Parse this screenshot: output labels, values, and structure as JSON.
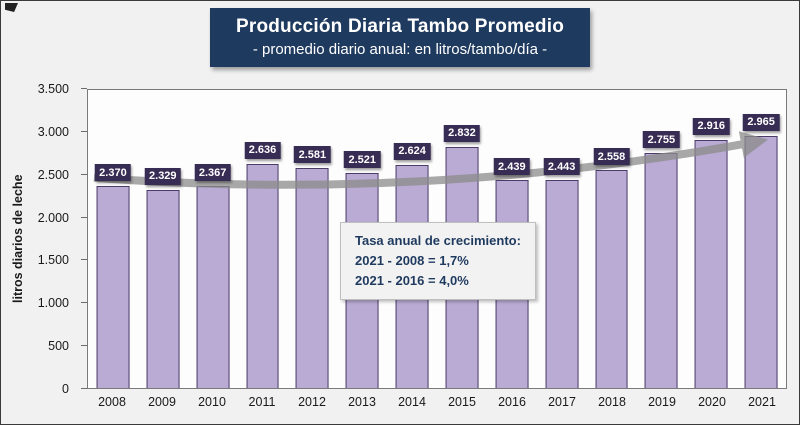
{
  "chart_data": {
    "type": "bar",
    "title": "Producción Diaria Tambo Promedio",
    "subtitle": "- promedio diario anual: en litros/tambo/día -",
    "ylabel": "litros diarios de leche",
    "xlabel": "",
    "categories": [
      "2008",
      "2009",
      "2010",
      "2011",
      "2012",
      "2013",
      "2014",
      "2015",
      "2016",
      "2017",
      "2018",
      "2019",
      "2020",
      "2021"
    ],
    "values": [
      2370,
      2329,
      2367,
      2636,
      2581,
      2521,
      2624,
      2832,
      2439,
      2443,
      2558,
      2755,
      2916,
      2965
    ],
    "value_labels": [
      "2.370",
      "2.329",
      "2.367",
      "2.636",
      "2.581",
      "2.521",
      "2.624",
      "2.832",
      "2.439",
      "2.443",
      "2.558",
      "2.755",
      "2.916",
      "2.965"
    ],
    "ylim": [
      0,
      3500
    ],
    "ytick_step": 500,
    "ytick_labels": [
      "0",
      "500",
      "1.000",
      "1.500",
      "2.000",
      "2.500",
      "3.000",
      "3.500"
    ],
    "grid": false,
    "legend": "none",
    "annotation": {
      "lines": [
        "Tasa anual de crecimiento:",
        "2021 - 2008 = 1,7%",
        "2021 - 2016 = 4,0%"
      ]
    },
    "trend_arrow": {
      "from": 2470,
      "control": 2180,
      "to": 2900
    },
    "colors": {
      "figure_bg": "#f1f1f1",
      "title_box": "#1f3a5f",
      "bar_fill": "#b9abd3",
      "bar_border": "#4a3b69",
      "value_label_box": "#372c54",
      "value_label_text": "#ffffff",
      "trend_arrow": "#8c8c8c",
      "annotation_bg": "#f2f2f2",
      "annotation_border": "#bfbfbf",
      "annotation_text": "#1f3a5f"
    }
  }
}
